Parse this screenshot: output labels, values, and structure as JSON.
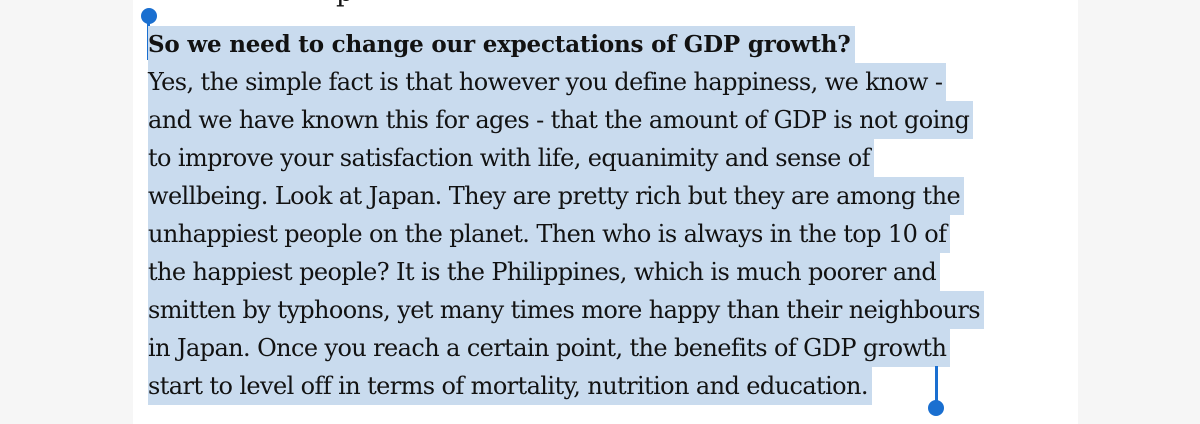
{
  "article": {
    "partial_line_above": "p",
    "heading": "So we need to change our expectations of GDP growth?",
    "body_lines": [
      "Yes, the simple fact is that however you define happiness, we know -",
      "and we have known this for ages - that the amount of GDP is not going",
      "to improve your satisfaction with life, equanimity and sense of",
      "wellbeing. Look at Japan. They are pretty rich but they are among the",
      "unhappiest people on the planet. Then who is always in the top 10 of",
      "the happiest people? It is the Philippines, which is much poorer and",
      "smitten by typhoons, yet many times more happy than their neighbours",
      "in Japan. Once you reach a certain point, the benefits of GDP growth",
      "start to level off in terms of mortality, nutrition and education."
    ]
  },
  "selection": {
    "highlight_color": "#c9dbee",
    "handle_color": "#1a6fd0"
  }
}
